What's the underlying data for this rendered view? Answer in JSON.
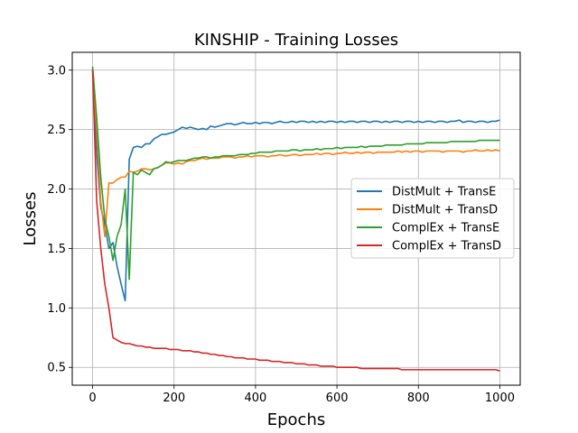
{
  "chart_data": {
    "type": "line",
    "title": "KINSHIP - Training Losses",
    "xlabel": "Epochs",
    "ylabel": "Losses",
    "xlim": [
      -50,
      1050
    ],
    "ylim": [
      0.35,
      3.15
    ],
    "xticks": [
      0,
      200,
      400,
      600,
      800,
      1000
    ],
    "yticks": [
      0.5,
      1.0,
      1.5,
      2.0,
      2.5,
      3.0
    ],
    "xtick_labels": [
      "0",
      "200",
      "400",
      "600",
      "800",
      "1000"
    ],
    "ytick_labels": [
      "0.5",
      "1.0",
      "1.5",
      "2.0",
      "2.5",
      "3.0"
    ],
    "grid": true,
    "legend_position": "center-right",
    "series": [
      {
        "name": "DistMult + TransE",
        "color": "#1f77b4",
        "x": [
          0,
          10,
          20,
          30,
          40,
          50,
          60,
          70,
          80,
          90,
          100,
          110,
          120,
          130,
          140,
          150,
          160,
          170,
          180,
          190,
          200,
          210,
          220,
          230,
          240,
          250,
          260,
          270,
          280,
          290,
          300,
          310,
          320,
          330,
          340,
          350,
          360,
          370,
          380,
          390,
          400,
          410,
          420,
          430,
          440,
          450,
          460,
          470,
          480,
          490,
          500,
          510,
          520,
          530,
          540,
          550,
          560,
          570,
          580,
          590,
          600,
          610,
          620,
          630,
          640,
          650,
          660,
          670,
          680,
          690,
          700,
          710,
          720,
          730,
          740,
          750,
          760,
          770,
          780,
          790,
          800,
          810,
          820,
          830,
          840,
          850,
          860,
          870,
          880,
          890,
          900,
          910,
          920,
          930,
          940,
          950,
          960,
          970,
          980,
          990,
          1000
        ],
        "values": [
          3.0,
          2.3,
          1.85,
          1.7,
          1.5,
          1.55,
          1.35,
          1.2,
          1.06,
          2.25,
          2.35,
          2.36,
          2.35,
          2.38,
          2.38,
          2.42,
          2.44,
          2.46,
          2.46,
          2.47,
          2.48,
          2.5,
          2.52,
          2.51,
          2.52,
          2.51,
          2.5,
          2.51,
          2.5,
          2.53,
          2.52,
          2.53,
          2.54,
          2.55,
          2.55,
          2.54,
          2.55,
          2.56,
          2.55,
          2.55,
          2.56,
          2.55,
          2.56,
          2.56,
          2.55,
          2.56,
          2.57,
          2.56,
          2.56,
          2.57,
          2.56,
          2.57,
          2.57,
          2.56,
          2.57,
          2.56,
          2.57,
          2.56,
          2.57,
          2.57,
          2.56,
          2.57,
          2.56,
          2.57,
          2.57,
          2.56,
          2.57,
          2.57,
          2.56,
          2.57,
          2.57,
          2.56,
          2.57,
          2.56,
          2.57,
          2.57,
          2.56,
          2.57,
          2.57,
          2.56,
          2.57,
          2.56,
          2.57,
          2.57,
          2.56,
          2.57,
          2.57,
          2.56,
          2.57,
          2.57,
          2.58,
          2.56,
          2.57,
          2.57,
          2.56,
          2.57,
          2.57,
          2.56,
          2.57,
          2.57,
          2.58
        ]
      },
      {
        "name": "DistMult + TransD",
        "color": "#ff7f0e",
        "x": [
          0,
          10,
          20,
          30,
          40,
          50,
          60,
          70,
          80,
          90,
          100,
          110,
          120,
          130,
          140,
          150,
          160,
          170,
          180,
          190,
          200,
          210,
          220,
          230,
          240,
          250,
          260,
          270,
          280,
          290,
          300,
          310,
          320,
          330,
          340,
          350,
          360,
          370,
          380,
          390,
          400,
          410,
          420,
          430,
          440,
          450,
          460,
          470,
          480,
          490,
          500,
          510,
          520,
          530,
          540,
          550,
          560,
          570,
          580,
          590,
          600,
          610,
          620,
          630,
          640,
          650,
          660,
          670,
          680,
          690,
          700,
          710,
          720,
          730,
          740,
          750,
          760,
          770,
          780,
          790,
          800,
          810,
          820,
          830,
          840,
          850,
          860,
          870,
          880,
          890,
          900,
          910,
          920,
          930,
          940,
          950,
          960,
          970,
          980,
          990,
          1000
        ],
        "values": [
          3.02,
          2.5,
          1.9,
          1.6,
          2.05,
          2.05,
          2.08,
          2.1,
          2.1,
          2.15,
          2.14,
          2.15,
          2.17,
          2.17,
          2.16,
          2.17,
          2.18,
          2.2,
          2.22,
          2.22,
          2.21,
          2.22,
          2.21,
          2.23,
          2.24,
          2.24,
          2.25,
          2.26,
          2.25,
          2.26,
          2.26,
          2.26,
          2.27,
          2.27,
          2.27,
          2.26,
          2.27,
          2.27,
          2.28,
          2.27,
          2.28,
          2.28,
          2.28,
          2.27,
          2.28,
          2.28,
          2.29,
          2.28,
          2.28,
          2.29,
          2.29,
          2.28,
          2.29,
          2.29,
          2.29,
          2.3,
          2.29,
          2.3,
          2.3,
          2.29,
          2.3,
          2.3,
          2.31,
          2.3,
          2.3,
          2.31,
          2.3,
          2.31,
          2.31,
          2.3,
          2.31,
          2.31,
          2.31,
          2.31,
          2.31,
          2.32,
          2.31,
          2.32,
          2.31,
          2.32,
          2.32,
          2.31,
          2.32,
          2.32,
          2.32,
          2.32,
          2.31,
          2.32,
          2.32,
          2.32,
          2.32,
          2.31,
          2.32,
          2.32,
          2.33,
          2.32,
          2.32,
          2.33,
          2.32,
          2.33,
          2.32
        ]
      },
      {
        "name": "ComplEx + TransE",
        "color": "#2ca02c",
        "x": [
          0,
          10,
          20,
          30,
          40,
          50,
          60,
          70,
          80,
          90,
          100,
          110,
          120,
          130,
          140,
          150,
          160,
          170,
          180,
          190,
          200,
          210,
          220,
          230,
          240,
          250,
          260,
          270,
          280,
          290,
          300,
          310,
          320,
          330,
          340,
          350,
          360,
          370,
          380,
          390,
          400,
          410,
          420,
          430,
          440,
          450,
          460,
          470,
          480,
          490,
          500,
          510,
          520,
          530,
          540,
          550,
          560,
          570,
          580,
          590,
          600,
          610,
          620,
          630,
          640,
          650,
          660,
          670,
          680,
          690,
          700,
          710,
          720,
          730,
          740,
          750,
          760,
          770,
          780,
          790,
          800,
          810,
          820,
          830,
          840,
          850,
          860,
          870,
          880,
          890,
          900,
          910,
          920,
          930,
          940,
          950,
          960,
          970,
          980,
          990,
          1000
        ],
        "values": [
          3.03,
          2.6,
          2.1,
          1.75,
          1.6,
          1.4,
          1.6,
          1.7,
          2.0,
          1.24,
          2.14,
          2.12,
          2.16,
          2.14,
          2.12,
          2.17,
          2.18,
          2.2,
          2.23,
          2.22,
          2.23,
          2.24,
          2.24,
          2.24,
          2.25,
          2.26,
          2.26,
          2.27,
          2.27,
          2.26,
          2.27,
          2.27,
          2.28,
          2.28,
          2.28,
          2.28,
          2.29,
          2.29,
          2.29,
          2.3,
          2.3,
          2.31,
          2.31,
          2.31,
          2.31,
          2.32,
          2.32,
          2.32,
          2.32,
          2.33,
          2.33,
          2.32,
          2.33,
          2.33,
          2.33,
          2.34,
          2.33,
          2.34,
          2.34,
          2.34,
          2.35,
          2.34,
          2.35,
          2.35,
          2.35,
          2.35,
          2.36,
          2.35,
          2.36,
          2.36,
          2.36,
          2.36,
          2.37,
          2.37,
          2.37,
          2.37,
          2.37,
          2.38,
          2.38,
          2.38,
          2.38,
          2.38,
          2.39,
          2.39,
          2.39,
          2.39,
          2.39,
          2.39,
          2.4,
          2.4,
          2.4,
          2.4,
          2.4,
          2.4,
          2.4,
          2.41,
          2.41,
          2.41,
          2.41,
          2.41,
          2.41
        ]
      },
      {
        "name": "ComplEx + TransD",
        "color": "#d62728",
        "x": [
          0,
          10,
          20,
          30,
          40,
          50,
          60,
          70,
          80,
          90,
          100,
          110,
          120,
          130,
          140,
          150,
          160,
          170,
          180,
          190,
          200,
          210,
          220,
          230,
          240,
          250,
          260,
          270,
          280,
          290,
          300,
          310,
          320,
          330,
          340,
          350,
          360,
          370,
          380,
          390,
          400,
          410,
          420,
          430,
          440,
          450,
          460,
          470,
          480,
          490,
          500,
          510,
          520,
          530,
          540,
          550,
          560,
          570,
          580,
          590,
          600,
          610,
          620,
          630,
          640,
          650,
          660,
          670,
          680,
          690,
          700,
          710,
          720,
          730,
          740,
          750,
          760,
          770,
          780,
          790,
          800,
          810,
          820,
          830,
          840,
          850,
          860,
          870,
          880,
          890,
          900,
          910,
          920,
          930,
          940,
          950,
          960,
          970,
          980,
          990,
          1000
        ],
        "values": [
          3.0,
          1.9,
          1.5,
          1.2,
          1.0,
          0.75,
          0.73,
          0.71,
          0.7,
          0.7,
          0.69,
          0.68,
          0.68,
          0.67,
          0.67,
          0.66,
          0.66,
          0.66,
          0.66,
          0.65,
          0.65,
          0.65,
          0.64,
          0.64,
          0.64,
          0.63,
          0.63,
          0.62,
          0.62,
          0.61,
          0.61,
          0.6,
          0.6,
          0.59,
          0.59,
          0.58,
          0.58,
          0.58,
          0.57,
          0.57,
          0.57,
          0.56,
          0.56,
          0.56,
          0.55,
          0.55,
          0.55,
          0.54,
          0.54,
          0.54,
          0.53,
          0.53,
          0.53,
          0.52,
          0.52,
          0.52,
          0.51,
          0.51,
          0.51,
          0.51,
          0.5,
          0.5,
          0.5,
          0.5,
          0.5,
          0.5,
          0.49,
          0.49,
          0.49,
          0.49,
          0.49,
          0.49,
          0.49,
          0.49,
          0.49,
          0.49,
          0.48,
          0.48,
          0.48,
          0.48,
          0.48,
          0.48,
          0.48,
          0.48,
          0.48,
          0.48,
          0.48,
          0.48,
          0.48,
          0.48,
          0.48,
          0.48,
          0.48,
          0.48,
          0.48,
          0.48,
          0.48,
          0.48,
          0.48,
          0.48,
          0.47
        ]
      }
    ]
  }
}
